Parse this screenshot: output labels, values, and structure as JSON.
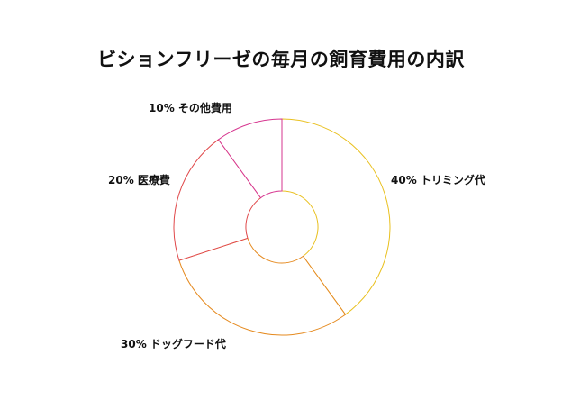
{
  "chart_data": {
    "type": "pie",
    "title": "ビションフリーゼの毎月の飼育費用の内訳",
    "donut": true,
    "slices": [
      {
        "label": "トリミング代",
        "value": 40,
        "value_label": "40%",
        "color": "#e9c01f"
      },
      {
        "label": "ドッグフード代",
        "value": 30,
        "value_label": "30%",
        "color": "#e58a1f"
      },
      {
        "label": "医療費",
        "value": 20,
        "value_label": "20%",
        "color": "#e0484a"
      },
      {
        "label": "その他費用",
        "value": 10,
        "value_label": "10%",
        "color": "#d6358f"
      }
    ],
    "legend": "none"
  }
}
